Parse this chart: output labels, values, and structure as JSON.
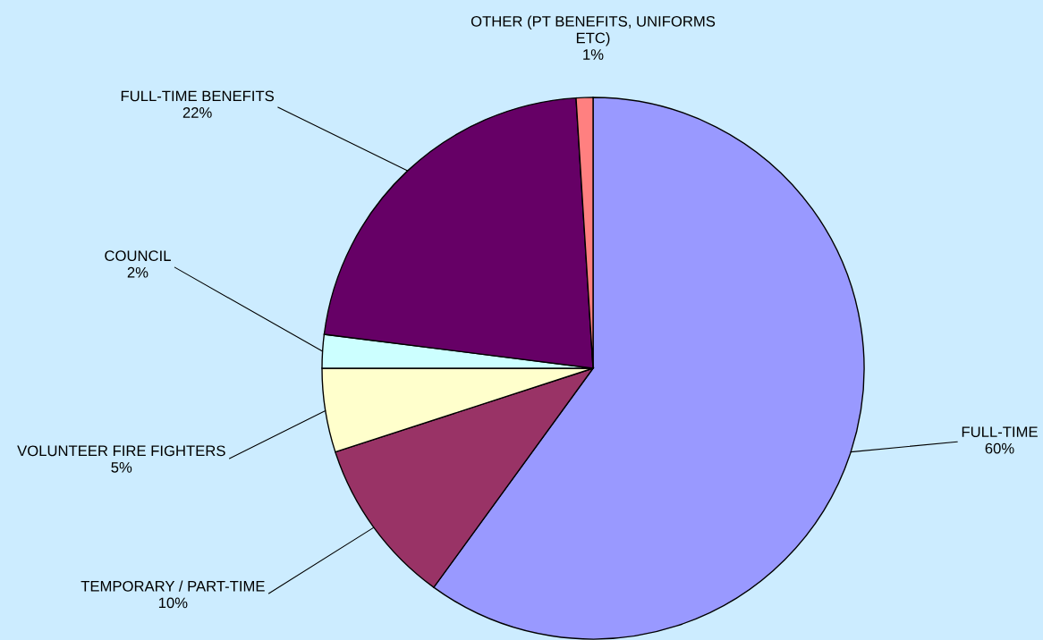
{
  "chart_data": {
    "type": "pie",
    "categories": [
      "FULL-TIME",
      "TEMPORARY / PART-TIME",
      "VOLUNTEER FIRE FIGHTERS",
      "COUNCIL",
      "FULL-TIME BENEFITS",
      "OTHER (PT BENEFITS, UNIFORMS ETC)"
    ],
    "values": [
      60,
      10,
      5,
      2,
      22,
      1
    ],
    "value_labels": [
      "60%",
      "10%",
      "5%",
      "2%",
      "22%",
      "1%"
    ],
    "colors": [
      "#9999ff",
      "#993366",
      "#ffffcc",
      "#ccffff",
      "#660066",
      "#ff8080"
    ]
  }
}
